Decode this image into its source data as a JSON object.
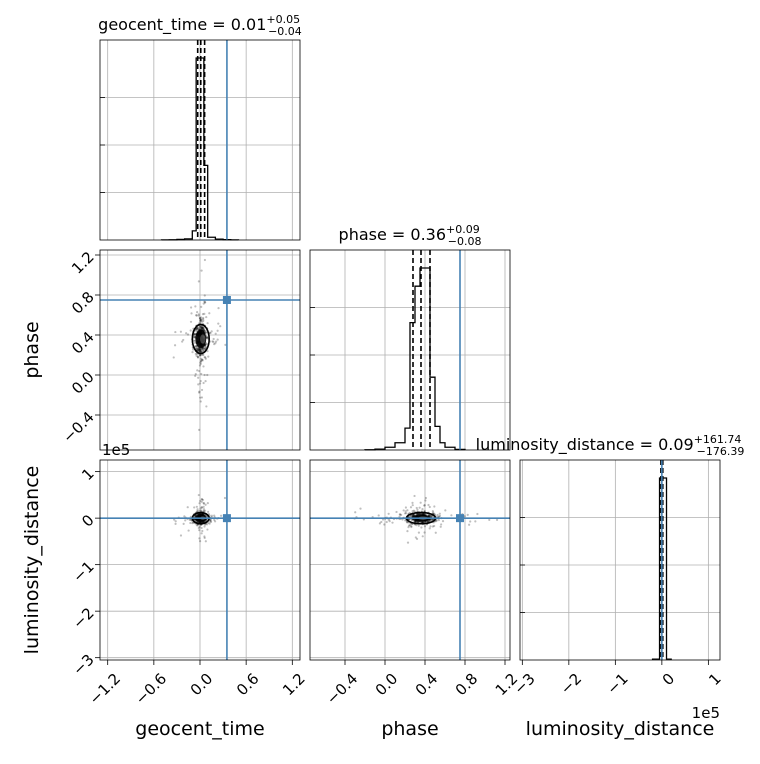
{
  "chart_data": {
    "type": "corner",
    "parameters": [
      "geocent_time",
      "phase",
      "luminosity_distance"
    ],
    "truth_color": "#4682b4",
    "truths": {
      "geocent_time": 0.35,
      "phase": 0.75,
      "luminosity_distance": 0
    },
    "titles": [
      {
        "param": "geocent_time",
        "text": "geocent_time = 0.01",
        "plus": "+0.05",
        "minus": "−0.04"
      },
      {
        "param": "phase",
        "text": "phase = 0.36",
        "plus": "+0.09",
        "minus": "−0.08"
      },
      {
        "param": "luminosity_distance",
        "text": "luminosity_distance = 0.09",
        "plus": "+161.74",
        "minus": "−176.39"
      }
    ],
    "offset_labels": {
      "phase_row": "1e5",
      "luminosity_distance_col": "1e5"
    },
    "axes": {
      "geocent_time": {
        "range": [
          -1.3,
          1.3
        ],
        "ticks": [
          -1.2,
          -0.6,
          0.0,
          0.6,
          1.2
        ],
        "tick_labels": [
          "−1.2",
          "−0.6",
          "0.0",
          "0.6",
          "1.2"
        ]
      },
      "phase": {
        "range": [
          -0.75,
          1.25
        ],
        "ticks": [
          -0.4,
          0.0,
          0.4,
          0.8,
          1.2
        ],
        "tick_labels": [
          "−0.4",
          "0.0",
          "0.4",
          "0.8",
          "1.2"
        ]
      },
      "luminosity_distance": {
        "range": [
          -3.05,
          1.25
        ],
        "ticks": [
          -3,
          -2,
          -1,
          0,
          1
        ],
        "tick_labels": [
          "−3",
          "−2",
          "−1",
          "0",
          "1"
        ]
      }
    },
    "histograms": {
      "geocent_time": {
        "bins": [
          -0.5,
          -0.4,
          -0.3,
          -0.2,
          -0.1,
          -0.05,
          0.0,
          0.05,
          0.1,
          0.2,
          0.3,
          0.4,
          0.5
        ],
        "counts": [
          0.5,
          1,
          3,
          6,
          50,
          1000,
          1000,
          410,
          15,
          5,
          2,
          0.5
        ],
        "quantiles": [
          -0.03,
          0.01,
          0.06
        ]
      },
      "phase": {
        "bins": [
          -0.2,
          -0.1,
          0.0,
          0.1,
          0.2,
          0.25,
          0.3,
          0.35,
          0.4,
          0.45,
          0.5,
          0.55,
          0.6,
          0.7,
          0.8
        ],
        "counts": [
          1,
          5,
          15,
          40,
          120,
          700,
          900,
          1000,
          1000,
          400,
          130,
          40,
          15,
          3
        ],
        "quantiles": [
          0.28,
          0.36,
          0.45
        ]
      },
      "luminosity_distance": {
        "bins": [
          -0.2,
          -0.05,
          0.0,
          0.1,
          0.2
        ],
        "counts": [
          5,
          1000,
          1000,
          5
        ],
        "quantiles": [
          -0.02,
          0.0,
          0.02
        ]
      }
    },
    "centers": {
      "geocent_time": 0.01,
      "phase": 0.36,
      "luminosity_distance": 0.0
    }
  }
}
